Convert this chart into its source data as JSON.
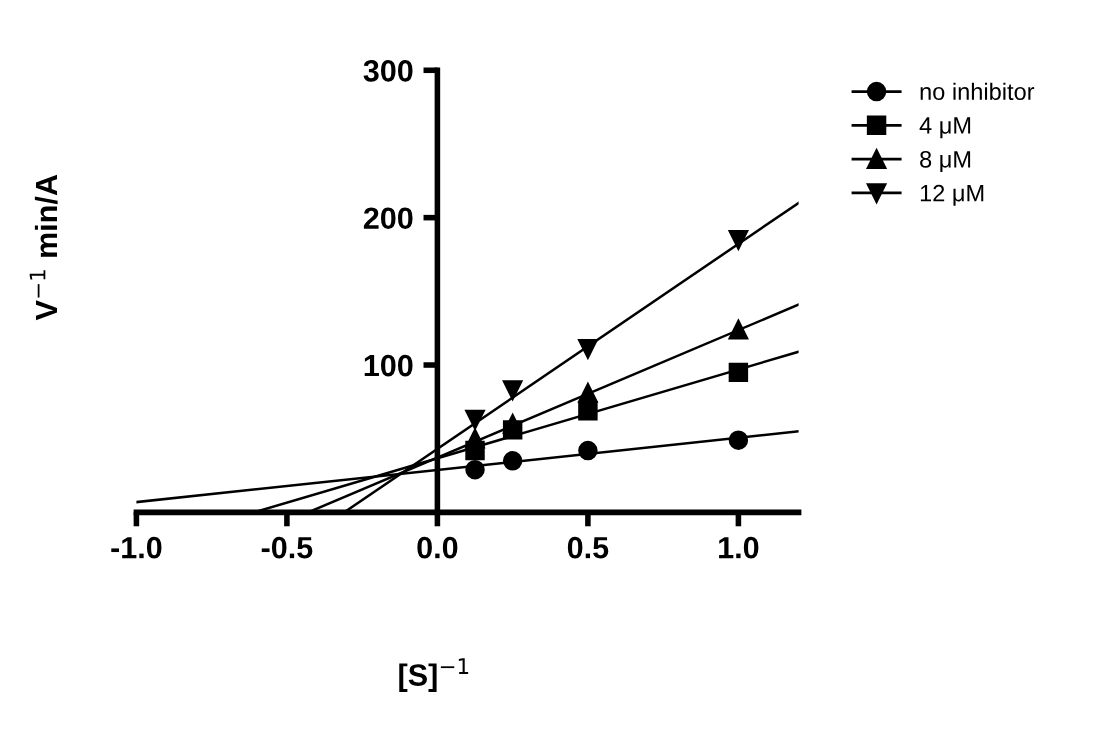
{
  "chart_data": {
    "type": "scatter",
    "xlabel": "[S]$^{−1}$",
    "ylabel": "V$^{−1}$ min/A",
    "xlim": [
      -1.0,
      1.2
    ],
    "ylim": [
      0,
      300
    ],
    "xticks": [
      {
        "value": -1.0,
        "label": "-1.0"
      },
      {
        "value": -0.5,
        "label": "-0.5"
      },
      {
        "value": 0.0,
        "label": "0.0"
      },
      {
        "value": 0.5,
        "label": "0.5"
      },
      {
        "value": 1.0,
        "label": "1.0"
      }
    ],
    "yticks": [
      100,
      200,
      300
    ],
    "legend": "top right",
    "grid": false,
    "series": [
      {
        "name": "no inhibitor",
        "marker": "circle",
        "color": "#000000",
        "x": [
          0.125,
          0.25,
          0.5,
          1.0
        ],
        "values": [
          29,
          35,
          42,
          49
        ]
      },
      {
        "name": "4 μM",
        "marker": "square",
        "color": "#000000",
        "x": [
          0.125,
          0.25,
          0.5,
          1.0
        ],
        "values": [
          42,
          56,
          69,
          95
        ]
      },
      {
        "name": "8 μM",
        "marker": "triangle",
        "color": "#000000",
        "x": [
          0.125,
          0.25,
          0.5,
          1.0
        ],
        "values": [
          50,
          60,
          81,
          124
        ]
      },
      {
        "name": "12 μM",
        "marker": "triangle_down",
        "color": "#000000",
        "x": [
          0.125,
          0.25,
          0.5,
          1.0
        ],
        "values": [
          63,
          83,
          111,
          185
        ]
      },
      {
        "type": "line",
        "marker": "none",
        "color": "#000000",
        "x": [
          -1.0,
          1.2
        ],
        "values": [
          7,
          55
        ]
      },
      {
        "type": "line",
        "marker": "none",
        "color": "#000000",
        "x": [
          -0.61,
          1.2
        ],
        "values": [
          0,
          109
        ]
      },
      {
        "type": "line",
        "marker": "none",
        "color": "#000000",
        "x": [
          -0.43,
          1.2
        ],
        "values": [
          0,
          141
        ]
      },
      {
        "type": "line",
        "marker": "none",
        "color": "#000000",
        "x": [
          -0.31,
          1.2
        ],
        "values": [
          0,
          210
        ]
      }
    ]
  }
}
